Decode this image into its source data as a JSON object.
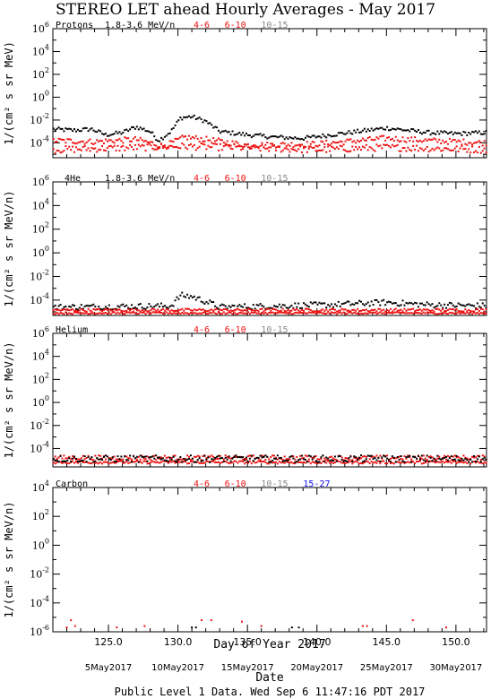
{
  "title": "STEREO LET ahead Hourly Averages - May 2017",
  "xlabel": "Day of Year 2017",
  "date_label": "Date",
  "footer": "Public Level 1 Data. Wed Sep  6 11:47:16 PDT 2017",
  "date_ticks": [
    "5May2017",
    "10May2017",
    "15May2017",
    "20May2017",
    "25May2017",
    "30May2017"
  ],
  "date_tick_doy": [
    125,
    130,
    135,
    140,
    145,
    150
  ],
  "colors": {
    "black": "#000000",
    "red": "#ee1111",
    "gray": "#8a8a8a",
    "blue": "#1111ee"
  },
  "chart_data": [
    {
      "type": "scatter",
      "name_label": "Protons",
      "ylabel": "1/(cm² s sr MeV)",
      "xlim": [
        121,
        152.2
      ],
      "ylim_exp": [
        -5.3,
        6
      ],
      "ytick_exp": [
        -4,
        -2,
        0,
        2,
        4,
        6
      ],
      "xticks": [
        125.0,
        130.0,
        135.0,
        140.0,
        145.0,
        150.0
      ],
      "channels": [
        {
          "label": "1.8-3.6 MeV/n",
          "color": "black"
        },
        {
          "label": "4-6",
          "color": "red"
        },
        {
          "label": "6-10",
          "color": "red"
        },
        {
          "label": "10-15",
          "color": "gray"
        }
      ],
      "series": [
        {
          "name": "1.8-3.6 MeV/n",
          "color": "black",
          "profile": [
            [
              121,
              -2.8
            ],
            [
              122.5,
              -2.9
            ],
            [
              123.8,
              -2.8
            ],
            [
              124.8,
              -3.3
            ],
            [
              126,
              -3.1
            ],
            [
              127,
              -2.6
            ],
            [
              128,
              -3.0
            ],
            [
              128.6,
              -3.8
            ],
            [
              129.5,
              -3.0
            ],
            [
              130.2,
              -1.8
            ],
            [
              131,
              -1.7
            ],
            [
              132,
              -2.1
            ],
            [
              133,
              -3.0
            ],
            [
              135,
              -3.3
            ],
            [
              137,
              -3.5
            ],
            [
              139,
              -3.6
            ],
            [
              141,
              -3.3
            ],
            [
              143,
              -3.0
            ],
            [
              145,
              -2.7
            ],
            [
              146.5,
              -2.9
            ],
            [
              148,
              -3.1
            ],
            [
              150,
              -3.2
            ],
            [
              152.2,
              -3.1
            ]
          ],
          "scatter": 0.18
        },
        {
          "name": "4-6",
          "color": "red",
          "profile": [
            [
              121,
              -3.8
            ],
            [
              124,
              -3.9
            ],
            [
              127,
              -3.7
            ],
            [
              129,
              -4.3
            ],
            [
              130.5,
              -3.5
            ],
            [
              132,
              -3.7
            ],
            [
              135,
              -4.2
            ],
            [
              140,
              -4.1
            ],
            [
              145,
              -3.6
            ],
            [
              148,
              -3.8
            ],
            [
              152.2,
              -4.0
            ]
          ],
          "scatter": 0.25
        },
        {
          "name": "6-10",
          "color": "red",
          "profile": [
            [
              121,
              -4.6
            ],
            [
              130.5,
              -4.3
            ],
            [
              140,
              -4.6
            ],
            [
              145,
              -4.4
            ],
            [
              152.2,
              -4.6
            ]
          ],
          "scatter": 0.3
        }
      ]
    },
    {
      "type": "scatter",
      "name_label": "4He",
      "ylabel": "1/(cm² s sr MeV/n)",
      "xlim": [
        121,
        152.2
      ],
      "ylim_exp": [
        -5.3,
        6
      ],
      "ytick_exp": [
        -4,
        -2,
        0,
        2,
        4,
        6
      ],
      "xticks": [
        125.0,
        130.0,
        135.0,
        140.0,
        145.0,
        150.0
      ],
      "channels": [
        {
          "label": "1.8-3.6 MeV/n",
          "color": "black"
        },
        {
          "label": "4-6",
          "color": "red"
        },
        {
          "label": "6-10",
          "color": "red"
        },
        {
          "label": "10-15",
          "color": "gray"
        }
      ],
      "series": [
        {
          "name": "1.8-3.6 MeV/n",
          "color": "black",
          "profile": [
            [
              121,
              -4.6
            ],
            [
              129.5,
              -4.5
            ],
            [
              130.2,
              -3.6
            ],
            [
              131,
              -3.7
            ],
            [
              132.2,
              -4.2
            ],
            [
              133,
              -4.6
            ],
            [
              141,
              -4.4
            ],
            [
              145,
              -4.2
            ],
            [
              148,
              -4.4
            ],
            [
              152.2,
              -4.5
            ]
          ],
          "scatter": 0.25
        },
        {
          "name": "4-6",
          "color": "red",
          "profile": [
            [
              121,
              -4.85
            ],
            [
              152.2,
              -4.85
            ]
          ],
          "scatter": 0.12
        },
        {
          "name": "6-10",
          "color": "red",
          "profile": [
            [
              121,
              -5.1
            ],
            [
              152.2,
              -5.1
            ]
          ],
          "scatter": 0.08
        }
      ]
    },
    {
      "type": "scatter",
      "name_label": "Helium",
      "ylabel": "1/(cm² s sr MeV/n)",
      "xlim": [
        121,
        152.2
      ],
      "ylim_exp": [
        -5.6,
        6
      ],
      "ytick_exp": [
        -4,
        -2,
        0,
        2,
        4,
        6
      ],
      "xticks": [
        125.0,
        130.0,
        135.0,
        140.0,
        145.0,
        150.0
      ],
      "channels": [
        {
          "label": "4-6",
          "color": "red"
        },
        {
          "label": "6-10",
          "color": "red"
        },
        {
          "label": "10-15",
          "color": "gray"
        }
      ],
      "series": [
        {
          "name": "4-6",
          "color": "red",
          "profile": [
            [
              121,
              -4.8
            ],
            [
              152.2,
              -4.8
            ]
          ],
          "scatter": 0.2
        },
        {
          "name": "6-10",
          "color": "red",
          "profile": [
            [
              121,
              -5.2
            ],
            [
              152.2,
              -5.2
            ]
          ],
          "scatter": 0.12
        },
        {
          "name": "10-15",
          "color": "black",
          "profile": [
            [
              121,
              -4.9
            ],
            [
              152.2,
              -4.9
            ]
          ],
          "scatter": 0.3
        }
      ]
    },
    {
      "type": "scatter",
      "name_label": "Carbon",
      "ylabel": "1/(cm² s sr MeV/n)",
      "xlim": [
        121,
        152.2
      ],
      "ylim_exp": [
        -6,
        4
      ],
      "ytick_exp": [
        -6,
        -4,
        -2,
        0,
        2,
        4
      ],
      "xticks": [
        125.0,
        130.0,
        135.0,
        140.0,
        145.0,
        150.0
      ],
      "channels": [
        {
          "label": "4-6",
          "color": "red"
        },
        {
          "label": "6-10",
          "color": "red"
        },
        {
          "label": "10-15",
          "color": "gray"
        },
        {
          "label": "15-27",
          "color": "blue"
        }
      ],
      "points": [
        {
          "x": 122.0,
          "y": -5.7,
          "c": "red"
        },
        {
          "x": 122.3,
          "y": -5.2,
          "c": "red"
        },
        {
          "x": 122.6,
          "y": -5.6,
          "c": "red"
        },
        {
          "x": 125.6,
          "y": -5.7,
          "c": "red"
        },
        {
          "x": 127.6,
          "y": -5.6,
          "c": "red"
        },
        {
          "x": 131.0,
          "y": -5.7,
          "c": "black"
        },
        {
          "x": 131.3,
          "y": -5.7,
          "c": "black"
        },
        {
          "x": 131.7,
          "y": -5.2,
          "c": "red"
        },
        {
          "x": 132.4,
          "y": -5.2,
          "c": "red"
        },
        {
          "x": 134.6,
          "y": -5.3,
          "c": "red"
        },
        {
          "x": 136.0,
          "y": -5.6,
          "c": "red"
        },
        {
          "x": 138.2,
          "y": -5.7,
          "c": "black"
        },
        {
          "x": 138.7,
          "y": -5.7,
          "c": "black"
        },
        {
          "x": 143.3,
          "y": -5.6,
          "c": "red"
        },
        {
          "x": 143.6,
          "y": -5.6,
          "c": "red"
        },
        {
          "x": 146.9,
          "y": -5.2,
          "c": "red"
        },
        {
          "x": 149.3,
          "y": -5.7,
          "c": "red"
        }
      ]
    }
  ]
}
